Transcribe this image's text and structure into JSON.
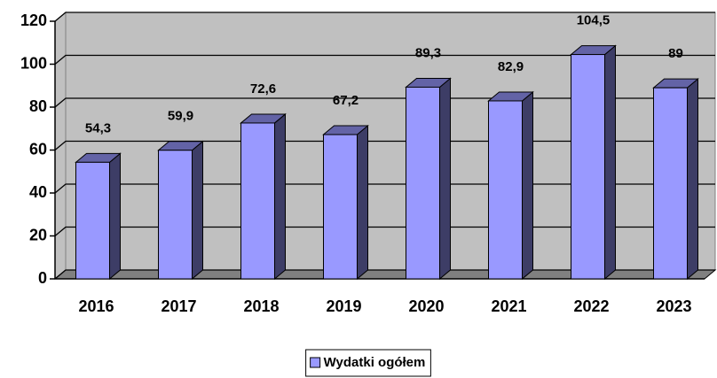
{
  "chart_data": {
    "type": "bar3d",
    "categories": [
      "2016",
      "2017",
      "2018",
      "2019",
      "2020",
      "2021",
      "2022",
      "2023"
    ],
    "series": [
      {
        "name": "Wydatki ogółem",
        "color": "#9999ff",
        "values": [
          54.3,
          59.9,
          72.6,
          67.2,
          89.3,
          82.9,
          104.5,
          89
        ],
        "value_labels": [
          "54,3",
          "59,9",
          "72,6",
          "67,2",
          "89,3",
          "82,9",
          "104,5",
          "89"
        ]
      }
    ],
    "ylim": [
      0,
      120
    ],
    "yticks": [
      0,
      20,
      40,
      60,
      80,
      100,
      120
    ],
    "grid": true,
    "legend": "bottom"
  }
}
